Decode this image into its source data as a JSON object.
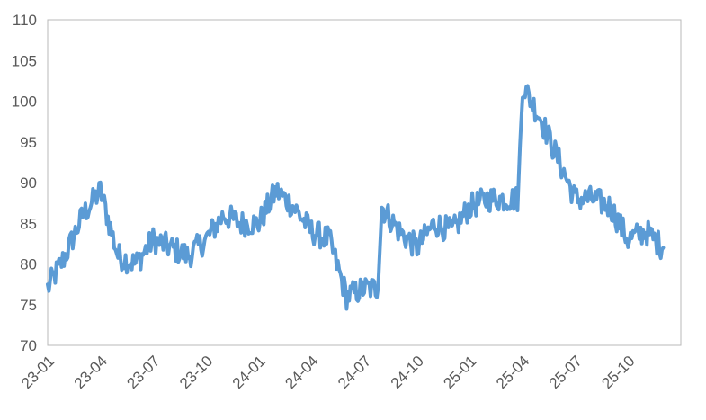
{
  "chart_data": {
    "type": "line",
    "title": "",
    "xlabel": "",
    "ylabel": "",
    "x_tick_labels": [
      "23-01",
      "23-04",
      "23-07",
      "23-10",
      "24-01",
      "24-04",
      "24-07",
      "24-10",
      "25-01",
      "25-04",
      "25-07",
      "25-10"
    ],
    "y_tick_labels": [
      "70",
      "75",
      "80",
      "85",
      "90",
      "95",
      "100",
      "105",
      "110"
    ],
    "ylim": [
      70,
      110
    ],
    "x_range": [
      "23-01",
      "25-12"
    ],
    "grid": false,
    "legend": "none",
    "line_color": "#5B9BD5",
    "series": [
      {
        "x": [
          "23-01",
          "23-02",
          "23-03",
          "23-04",
          "23-05",
          "23-06",
          "23-07",
          "23-08",
          "23-09",
          "23-10",
          "23-11",
          "23-12",
          "24-01",
          "24-02",
          "24-03",
          "24-04",
          "24-05",
          "24-06",
          "24-07",
          "24-08",
          "24-09",
          "24-10",
          "24-11",
          "24-12",
          "25-01",
          "25-02",
          "25-03",
          "25-04",
          "25-05",
          "25-06",
          "25-07",
          "25-08",
          "25-09",
          "25-10",
          "25-11",
          "25-12"
        ],
        "values": [
          77,
          81,
          86,
          89,
          81,
          80,
          83,
          82,
          81,
          83,
          86,
          85,
          85,
          89,
          87,
          84,
          83,
          76,
          77,
          87,
          84,
          82,
          85,
          84,
          87,
          88,
          88,
          102,
          98,
          93,
          88,
          88,
          87,
          83,
          84,
          82
        ]
      }
    ]
  }
}
